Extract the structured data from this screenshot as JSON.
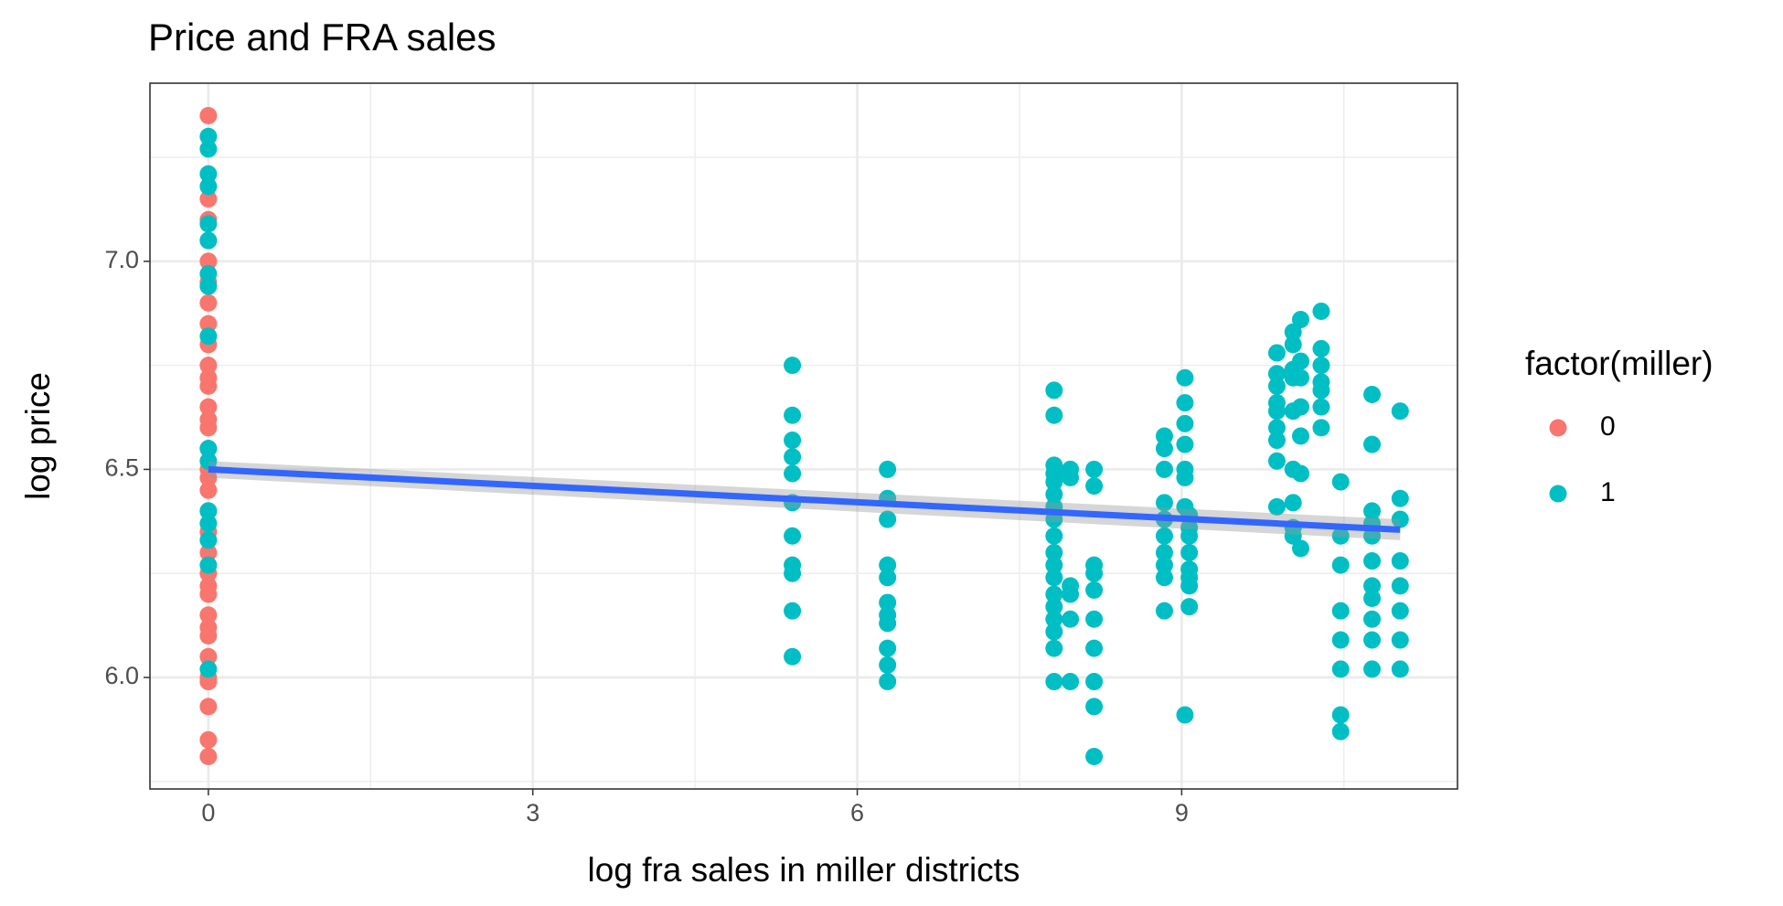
{
  "chart_data": {
    "type": "scatter",
    "title": "Price and FRA sales",
    "x_label": "log fra sales in miller districts",
    "y_label": "log price",
    "legend_title": "factor(miller)",
    "legend_position": "right",
    "grid": true,
    "xlim": [
      -0.54,
      11.55
    ],
    "ylim": [
      5.732,
      7.428
    ],
    "xticks": [
      0,
      3,
      6,
      9
    ],
    "yticks": [
      {
        "value": 6,
        "label": "6.0"
      },
      6.5,
      {
        "value": 7,
        "label": "7.0"
      }
    ],
    "xminor": [
      1.5,
      4.5,
      7.5,
      10.5
    ],
    "yminor": [
      5.75,
      6.25,
      6.75,
      7.25
    ],
    "series": [
      {
        "name": "0",
        "color": "#F8766D",
        "x": [
          0,
          0,
          0,
          0,
          0,
          0,
          0,
          0,
          0,
          0,
          0,
          0,
          0,
          0,
          0,
          0,
          0,
          0,
          0,
          0,
          0,
          0,
          0,
          0,
          0,
          0,
          0,
          0,
          0,
          0,
          0,
          0,
          0,
          0
        ],
        "y": [
          7.35,
          7.15,
          7.1,
          7.05,
          7.0,
          6.95,
          6.9,
          6.85,
          6.8,
          6.75,
          6.72,
          6.7,
          6.65,
          6.62,
          6.6,
          6.55,
          6.5,
          6.48,
          6.45,
          6.4,
          6.35,
          6.3,
          6.25,
          6.22,
          6.2,
          6.15,
          6.12,
          6.1,
          6.05,
          6.0,
          5.99,
          5.93,
          5.85,
          5.81
        ]
      },
      {
        "name": "1",
        "color": "#00BFC4",
        "x": [
          0,
          0,
          0,
          0,
          0,
          0,
          0,
          0,
          0,
          0,
          0,
          0,
          0,
          0,
          0,
          0,
          5.4,
          5.4,
          5.4,
          5.4,
          5.4,
          5.4,
          5.4,
          5.4,
          5.4,
          5.4,
          5.4,
          6.28,
          6.28,
          6.28,
          6.28,
          6.28,
          6.28,
          6.28,
          6.28,
          6.28,
          6.28,
          6.28,
          7.82,
          7.82,
          7.82,
          7.82,
          7.82,
          7.82,
          7.82,
          7.82,
          7.82,
          7.82,
          7.82,
          7.82,
          7.82,
          7.82,
          7.82,
          7.82,
          7.82,
          7.82,
          7.97,
          7.97,
          7.97,
          7.97,
          7.97,
          7.97,
          8.19,
          8.19,
          8.19,
          8.19,
          8.19,
          8.19,
          8.19,
          8.19,
          8.19,
          8.19,
          8.84,
          8.84,
          8.84,
          8.84,
          8.84,
          8.84,
          8.84,
          8.84,
          8.84,
          8.84,
          9.03,
          9.03,
          9.03,
          9.03,
          9.03,
          9.03,
          9.03,
          9.03,
          9.07,
          9.07,
          9.07,
          9.07,
          9.07,
          9.07,
          9.07,
          9.07,
          9.88,
          9.88,
          9.88,
          9.88,
          9.88,
          9.88,
          9.88,
          9.88,
          9.88,
          10.03,
          10.03,
          10.03,
          10.03,
          10.03,
          10.03,
          10.03,
          10.03,
          10.03,
          10.1,
          10.1,
          10.1,
          10.1,
          10.1,
          10.1,
          10.1,
          10.29,
          10.29,
          10.29,
          10.29,
          10.29,
          10.29,
          10.29,
          10.47,
          10.47,
          10.47,
          10.47,
          10.47,
          10.47,
          10.47,
          10.47,
          10.76,
          10.76,
          10.76,
          10.76,
          10.76,
          10.76,
          10.76,
          10.76,
          10.76,
          10.76,
          10.76,
          11.02,
          11.02,
          11.02,
          11.02,
          11.02,
          11.02,
          11.02,
          11.02
        ],
        "y": [
          7.3,
          7.27,
          7.21,
          7.18,
          7.09,
          7.05,
          6.97,
          6.94,
          6.82,
          6.55,
          6.52,
          6.4,
          6.37,
          6.33,
          6.27,
          6.02,
          6.75,
          6.63,
          6.57,
          6.53,
          6.49,
          6.42,
          6.34,
          6.27,
          6.25,
          6.16,
          6.05,
          6.5,
          6.43,
          6.38,
          6.27,
          6.24,
          6.18,
          6.15,
          6.13,
          6.07,
          6.03,
          5.99,
          6.69,
          6.63,
          6.51,
          6.49,
          6.47,
          6.44,
          6.41,
          6.38,
          6.34,
          6.3,
          6.27,
          6.24,
          6.2,
          6.17,
          6.14,
          6.11,
          6.07,
          5.99,
          6.5,
          6.48,
          6.22,
          6.2,
          6.14,
          5.99,
          6.5,
          6.46,
          6.27,
          6.25,
          6.21,
          6.14,
          6.07,
          5.99,
          5.93,
          5.81,
          6.58,
          6.55,
          6.5,
          6.42,
          6.38,
          6.34,
          6.3,
          6.27,
          6.24,
          6.16,
          6.72,
          6.66,
          6.61,
          6.56,
          6.5,
          6.48,
          6.41,
          5.91,
          6.39,
          6.36,
          6.34,
          6.3,
          6.26,
          6.24,
          6.22,
          6.17,
          6.78,
          6.73,
          6.7,
          6.66,
          6.64,
          6.6,
          6.57,
          6.52,
          6.41,
          6.83,
          6.8,
          6.74,
          6.72,
          6.64,
          6.5,
          6.42,
          6.36,
          6.34,
          6.86,
          6.76,
          6.72,
          6.65,
          6.58,
          6.49,
          6.31,
          6.88,
          6.79,
          6.75,
          6.71,
          6.69,
          6.65,
          6.6,
          6.47,
          6.34,
          6.27,
          6.16,
          6.09,
          6.02,
          5.91,
          5.87,
          6.68,
          6.56,
          6.4,
          6.37,
          6.34,
          6.28,
          6.22,
          6.19,
          6.14,
          6.09,
          6.02,
          6.64,
          6.43,
          6.38,
          6.28,
          6.22,
          6.16,
          6.09,
          6.02
        ]
      }
    ],
    "trend": {
      "color": "#3366FF",
      "x": [
        0,
        11.02
      ],
      "y": [
        6.5,
        6.355
      ],
      "lower": [
        6.48,
        6.33
      ],
      "upper": [
        6.52,
        6.38
      ]
    }
  }
}
